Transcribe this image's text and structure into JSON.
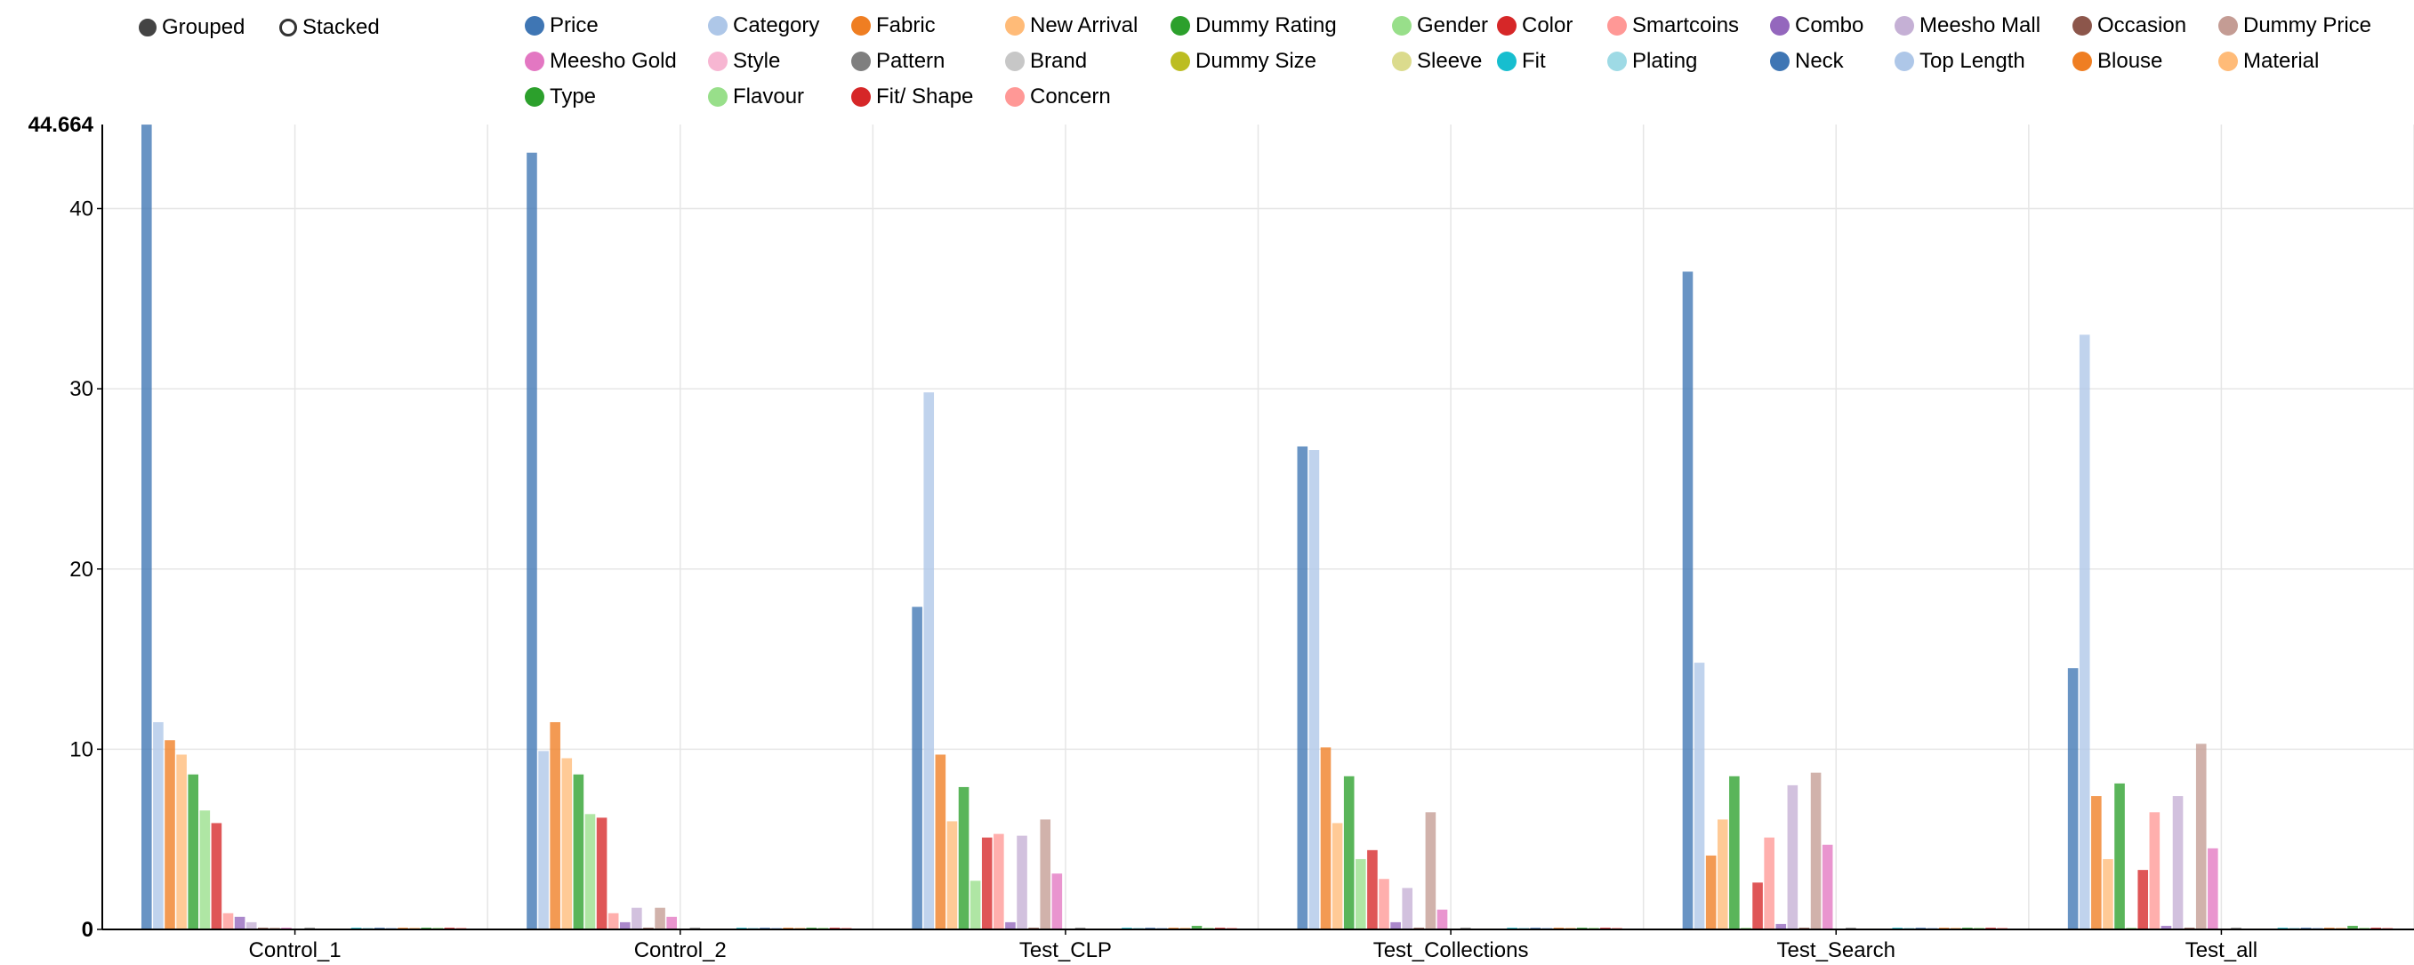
{
  "controls": {
    "grouped_label": "Grouped",
    "stacked_label": "Stacked",
    "selected": "Grouped"
  },
  "legend": [
    {
      "name": "Price",
      "color": "#3f76b4"
    },
    {
      "name": "Category",
      "color": "#aec7e8"
    },
    {
      "name": "Fabric",
      "color": "#ef7e22"
    },
    {
      "name": "New Arrival",
      "color": "#ffbb78"
    },
    {
      "name": "Dummy Rating",
      "color": "#2ca02c"
    },
    {
      "name": "Gender",
      "color": "#98df8a"
    },
    {
      "name": "Color",
      "color": "#d62728"
    },
    {
      "name": "Smartcoins",
      "color": "#ff9896"
    },
    {
      "name": "Combo",
      "color": "#9467bd"
    },
    {
      "name": "Meesho Mall",
      "color": "#c5b0d5"
    },
    {
      "name": "Occasion",
      "color": "#8c564b"
    },
    {
      "name": "Dummy Price",
      "color": "#c49c94"
    },
    {
      "name": "Meesho Gold",
      "color": "#e377c2"
    },
    {
      "name": "Style",
      "color": "#f7b6d2"
    },
    {
      "name": "Pattern",
      "color": "#7f7f7f"
    },
    {
      "name": "Brand",
      "color": "#c7c7c7"
    },
    {
      "name": "Dummy Size",
      "color": "#bcbd22"
    },
    {
      "name": "Sleeve",
      "color": "#dbdb8d"
    },
    {
      "name": "Fit",
      "color": "#17becf"
    },
    {
      "name": "Plating",
      "color": "#9edae5"
    },
    {
      "name": "Neck",
      "color": "#3f76b4"
    },
    {
      "name": "Top Length",
      "color": "#aec7e8"
    },
    {
      "name": "Blouse",
      "color": "#ef7e22"
    },
    {
      "name": "Material",
      "color": "#ffbb78"
    },
    {
      "name": "Type",
      "color": "#2ca02c"
    },
    {
      "name": "Flavour",
      "color": "#98df8a"
    },
    {
      "name": "Fit/ Shape",
      "color": "#d62728"
    },
    {
      "name": "Concern",
      "color": "#ff9896"
    }
  ],
  "chart_data": {
    "type": "bar",
    "mode": "grouped",
    "categories": [
      "Control_1",
      "Control_2",
      "Test_CLP",
      "Test_Collections",
      "Test_Search",
      "Test_all"
    ],
    "ylim": [
      0,
      44.664
    ],
    "y_ticks": [
      0,
      10,
      20,
      30,
      40
    ],
    "y_max_label": "44.664",
    "grid": true,
    "legend_position": "top",
    "series": [
      {
        "name": "Price",
        "values": [
          44.66,
          43.1,
          17.9,
          26.8,
          36.5,
          14.5
        ]
      },
      {
        "name": "Category",
        "values": [
          11.5,
          9.9,
          29.8,
          26.6,
          14.8,
          33.0
        ]
      },
      {
        "name": "Fabric",
        "values": [
          10.5,
          11.5,
          9.7,
          10.1,
          4.1,
          7.4
        ]
      },
      {
        "name": "New Arrival",
        "values": [
          9.7,
          9.5,
          6.0,
          5.9,
          6.1,
          3.9
        ]
      },
      {
        "name": "Dummy Rating",
        "values": [
          8.6,
          8.6,
          7.9,
          8.5,
          8.5,
          8.1
        ]
      },
      {
        "name": "Gender",
        "values": [
          6.6,
          6.4,
          2.7,
          3.9,
          0.1,
          0.1
        ]
      },
      {
        "name": "Color",
        "values": [
          5.9,
          6.2,
          5.1,
          4.4,
          2.6,
          3.3
        ]
      },
      {
        "name": "Smartcoins",
        "values": [
          0.9,
          0.9,
          5.3,
          2.8,
          5.1,
          6.5
        ]
      },
      {
        "name": "Combo",
        "values": [
          0.7,
          0.4,
          0.4,
          0.4,
          0.3,
          0.2
        ]
      },
      {
        "name": "Meesho Mall",
        "values": [
          0.4,
          1.2,
          5.2,
          2.3,
          8.0,
          7.4
        ]
      },
      {
        "name": "Occasion",
        "values": [
          0.1,
          0.1,
          0.1,
          0.1,
          0.1,
          0.1
        ]
      },
      {
        "name": "Dummy Price",
        "values": [
          0.1,
          1.2,
          6.1,
          6.5,
          8.7,
          10.3
        ]
      },
      {
        "name": "Meesho Gold",
        "values": [
          0.1,
          0.7,
          3.1,
          1.1,
          4.7,
          4.5
        ]
      },
      {
        "name": "Style",
        "values": [
          0.05,
          0.05,
          0.05,
          0.05,
          0.05,
          0.05
        ]
      },
      {
        "name": "Pattern",
        "values": [
          0.1,
          0.1,
          0.1,
          0.1,
          0.1,
          0.1
        ]
      },
      {
        "name": "Brand",
        "values": [
          0.05,
          0.05,
          0.05,
          0.05,
          0.05,
          0.05
        ]
      },
      {
        "name": "Dummy Size",
        "values": [
          0.05,
          0.05,
          0.05,
          0.05,
          0.05,
          0.05
        ]
      },
      {
        "name": "Sleeve",
        "values": [
          0.05,
          0.05,
          0.05,
          0.05,
          0.05,
          0.05
        ]
      },
      {
        "name": "Fit",
        "values": [
          0.1,
          0.1,
          0.1,
          0.1,
          0.1,
          0.1
        ]
      },
      {
        "name": "Plating",
        "values": [
          0.1,
          0.1,
          0.1,
          0.1,
          0.1,
          0.1
        ]
      },
      {
        "name": "Neck",
        "values": [
          0.1,
          0.1,
          0.1,
          0.1,
          0.1,
          0.1
        ]
      },
      {
        "name": "Top Length",
        "values": [
          0.1,
          0.1,
          0.1,
          0.1,
          0.1,
          0.1
        ]
      },
      {
        "name": "Blouse",
        "values": [
          0.1,
          0.1,
          0.1,
          0.1,
          0.1,
          0.1
        ]
      },
      {
        "name": "Material",
        "values": [
          0.1,
          0.1,
          0.1,
          0.1,
          0.1,
          0.1
        ]
      },
      {
        "name": "Type",
        "values": [
          0.1,
          0.1,
          0.2,
          0.1,
          0.1,
          0.2
        ]
      },
      {
        "name": "Flavour",
        "values": [
          0.1,
          0.1,
          0.1,
          0.1,
          0.1,
          0.1
        ]
      },
      {
        "name": "Fit/ Shape",
        "values": [
          0.1,
          0.1,
          0.1,
          0.1,
          0.1,
          0.1
        ]
      },
      {
        "name": "Concern",
        "values": [
          0.1,
          0.1,
          0.1,
          0.1,
          0.1,
          0.1
        ]
      }
    ]
  }
}
